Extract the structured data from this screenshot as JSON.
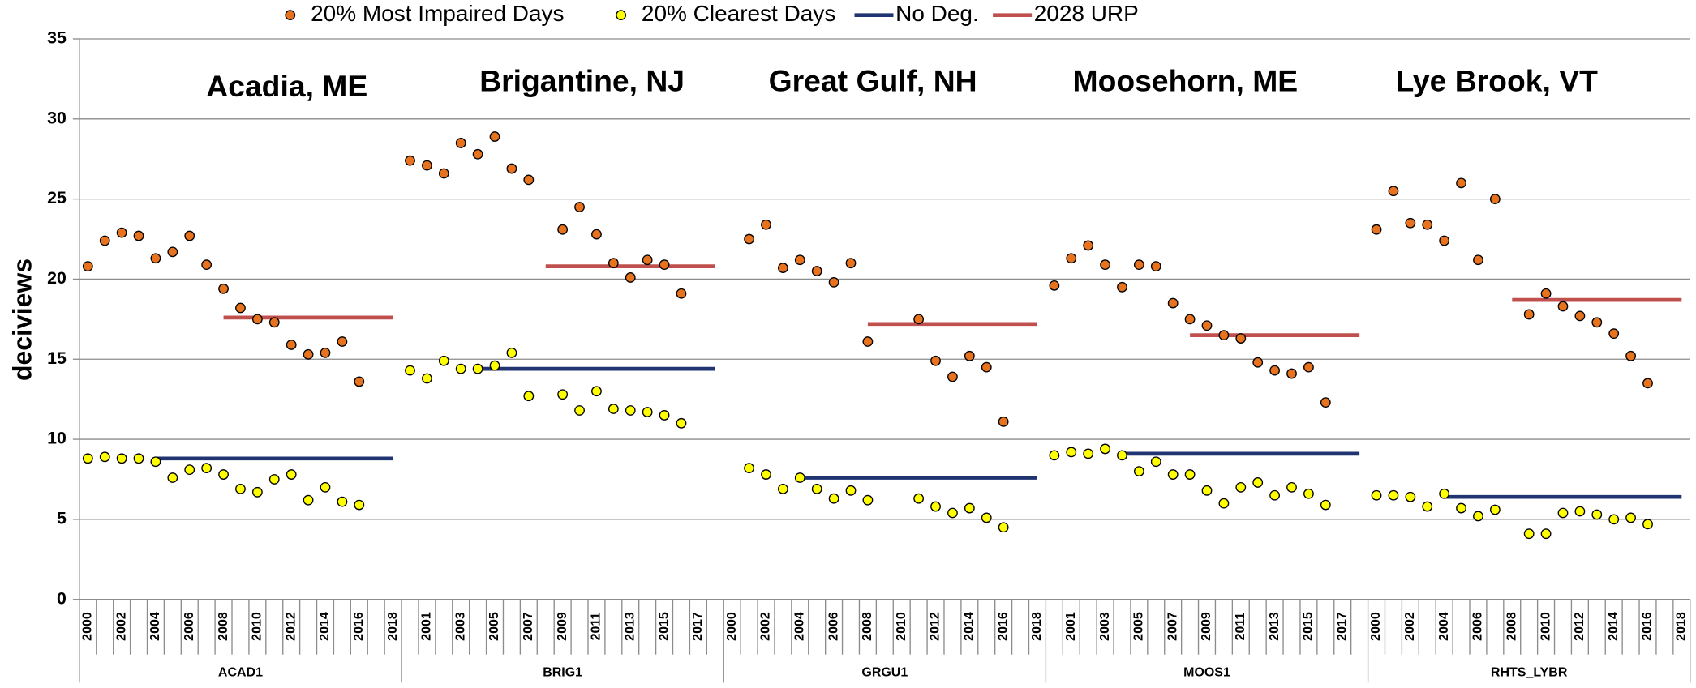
{
  "chart_data": {
    "type": "line",
    "y_label": "deciviews",
    "ylim": [
      0,
      35
    ],
    "yticks": [
      0,
      5,
      10,
      15,
      20,
      25,
      30,
      35
    ],
    "grid": true,
    "legend": "top",
    "groups": [
      "ACAD1",
      "BRIG1",
      "GRGU1",
      "MOOS1",
      "RHTS_LYBR"
    ],
    "annotations": [
      "Acadia, ME",
      "Brigantine, NJ",
      "Great Gulf, NH",
      "Moosehorn, ME",
      "Lye Brook, VT"
    ],
    "categories": [
      "2000",
      null,
      "2002",
      null,
      "2004",
      null,
      "2006",
      null,
      "2008",
      null,
      "2010",
      null,
      "2012",
      null,
      "2014",
      null,
      "2016",
      null,
      "2018",
      null,
      "2001",
      null,
      "2003",
      null,
      "2005",
      null,
      "2007",
      null,
      "2009",
      null,
      "2011",
      null,
      "2013",
      null,
      "2015",
      null,
      "2017",
      null,
      "2000",
      null,
      "2002",
      null,
      "2004",
      null,
      "2006",
      null,
      "2008",
      null,
      "2010",
      null,
      "2012",
      null,
      "2014",
      null,
      "2016",
      null,
      "2018",
      null,
      "2001",
      null,
      "2003",
      null,
      "2005",
      null,
      "2007",
      null,
      "2009",
      null,
      "2011",
      null,
      "2013",
      null,
      "2015",
      null,
      "2017",
      null,
      "2000",
      null,
      "2002",
      null,
      "2004",
      null,
      "2006",
      null,
      "2008",
      null,
      "2010",
      null,
      "2012",
      null,
      "2014",
      null,
      "2016",
      null,
      "2018"
    ],
    "series": [
      {
        "name": "20% Most Impaired Days",
        "color": "#e8731e",
        "mode": "markers",
        "values": [
          20.8,
          22.4,
          22.9,
          22.7,
          21.3,
          21.7,
          22.7,
          20.9,
          19.4,
          18.2,
          17.5,
          17.3,
          15.9,
          15.3,
          15.4,
          16.1,
          13.6,
          null,
          null,
          27.4,
          27.1,
          26.6,
          28.5,
          27.8,
          28.9,
          26.9,
          26.2,
          null,
          23.1,
          24.5,
          22.8,
          21.0,
          20.1,
          21.2,
          20.9,
          19.1,
          null,
          null,
          null,
          22.5,
          23.4,
          20.7,
          21.2,
          20.5,
          19.8,
          21.0,
          16.1,
          null,
          null,
          17.5,
          14.9,
          13.9,
          15.2,
          14.5,
          11.1,
          null,
          null,
          19.6,
          21.3,
          22.1,
          20.9,
          19.5,
          20.9,
          20.8,
          18.5,
          17.5,
          17.1,
          16.5,
          16.3,
          14.8,
          14.3,
          14.1,
          14.5,
          12.3,
          null,
          null,
          23.1,
          25.5,
          23.5,
          23.4,
          22.4,
          26.0,
          21.2,
          25.0,
          null,
          17.8,
          19.1,
          18.3,
          17.7,
          17.3,
          16.6,
          15.2,
          13.5,
          null,
          null
        ]
      },
      {
        "name": "20% Clearest Days",
        "color": "#ffff00",
        "mode": "markers",
        "values": [
          8.8,
          8.9,
          8.8,
          8.8,
          8.6,
          7.6,
          8.1,
          8.2,
          7.8,
          6.9,
          6.7,
          7.5,
          7.8,
          6.2,
          7.0,
          6.1,
          5.9,
          null,
          null,
          14.3,
          13.8,
          14.9,
          14.4,
          14.4,
          14.6,
          15.4,
          12.7,
          null,
          12.8,
          11.8,
          13.0,
          11.9,
          11.8,
          11.7,
          11.5,
          11.0,
          null,
          null,
          null,
          8.2,
          7.8,
          6.9,
          7.6,
          6.9,
          6.3,
          6.8,
          6.2,
          null,
          null,
          6.3,
          5.8,
          5.4,
          5.7,
          5.1,
          4.5,
          null,
          null,
          9.0,
          9.2,
          9.1,
          9.4,
          9.0,
          8.0,
          8.6,
          7.8,
          7.8,
          6.8,
          6.0,
          7.0,
          7.3,
          6.5,
          7.0,
          6.6,
          5.9,
          null,
          null,
          6.5,
          6.5,
          6.4,
          5.8,
          6.6,
          5.7,
          5.2,
          5.6,
          null,
          4.1,
          4.1,
          5.4,
          5.5,
          5.3,
          5.0,
          5.1,
          4.7,
          null,
          null
        ]
      },
      {
        "name": "No Deg.",
        "color": "#1f3470",
        "mode": "line",
        "values": [
          null,
          null,
          null,
          null,
          8.8,
          8.8,
          8.8,
          8.8,
          8.8,
          8.8,
          8.8,
          8.8,
          8.8,
          8.8,
          8.8,
          8.8,
          8.8,
          8.8,
          8.8,
          null,
          null,
          null,
          null,
          14.4,
          14.4,
          14.4,
          14.4,
          14.4,
          14.4,
          14.4,
          14.4,
          14.4,
          14.4,
          14.4,
          14.4,
          14.4,
          14.4,
          14.4,
          null,
          null,
          null,
          null,
          7.6,
          7.6,
          7.6,
          7.6,
          7.6,
          7.6,
          7.6,
          7.6,
          7.6,
          7.6,
          7.6,
          7.6,
          7.6,
          7.6,
          7.6,
          null,
          null,
          null,
          null,
          9.1,
          9.1,
          9.1,
          9.1,
          9.1,
          9.1,
          9.1,
          9.1,
          9.1,
          9.1,
          9.1,
          9.1,
          9.1,
          9.1,
          9.1,
          null,
          null,
          null,
          null,
          6.4,
          6.4,
          6.4,
          6.4,
          6.4,
          6.4,
          6.4,
          6.4,
          6.4,
          6.4,
          6.4,
          6.4,
          6.4,
          6.4,
          6.4
        ]
      },
      {
        "name": "2028 URP",
        "color": "#c0504d",
        "mode": "line",
        "values": [
          null,
          null,
          null,
          null,
          null,
          null,
          null,
          null,
          17.6,
          17.6,
          17.6,
          17.6,
          17.6,
          17.6,
          17.6,
          17.6,
          17.6,
          17.6,
          17.6,
          null,
          null,
          null,
          null,
          null,
          null,
          null,
          null,
          20.8,
          20.8,
          20.8,
          20.8,
          20.8,
          20.8,
          20.8,
          20.8,
          20.8,
          20.8,
          20.8,
          null,
          null,
          null,
          null,
          null,
          null,
          null,
          null,
          17.2,
          17.2,
          17.2,
          17.2,
          17.2,
          17.2,
          17.2,
          17.2,
          17.2,
          17.2,
          17.2,
          null,
          null,
          null,
          null,
          null,
          null,
          null,
          null,
          16.5,
          16.5,
          16.5,
          16.5,
          16.5,
          16.5,
          16.5,
          16.5,
          16.5,
          16.5,
          16.5,
          null,
          null,
          null,
          null,
          null,
          null,
          null,
          null,
          18.7,
          18.7,
          18.7,
          18.7,
          18.7,
          18.7,
          18.7,
          18.7,
          18.7,
          18.7,
          18.7
        ]
      }
    ]
  }
}
